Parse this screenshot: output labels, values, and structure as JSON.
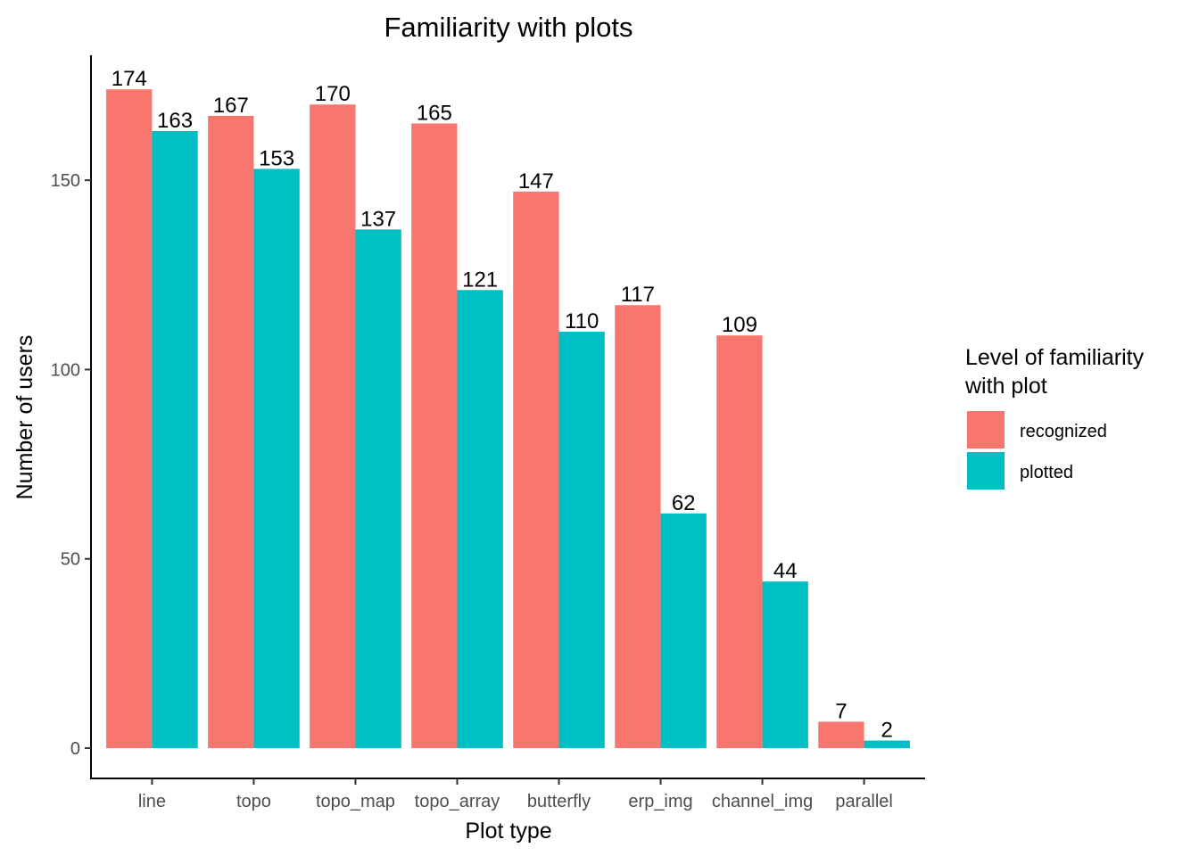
{
  "chart_data": {
    "type": "bar",
    "title": "Familiarity with plots",
    "xlabel": "Plot type",
    "ylabel": "Number of users",
    "categories": [
      "line",
      "topo",
      "topo_map",
      "topo_array",
      "butterfly",
      "erp_img",
      "channel_img",
      "parallel"
    ],
    "series": [
      {
        "name": "recognized",
        "color": "#F8766D",
        "values": [
          174,
          167,
          170,
          165,
          147,
          117,
          109,
          7
        ]
      },
      {
        "name": "plotted",
        "color": "#00BFC4",
        "values": [
          163,
          153,
          137,
          121,
          110,
          62,
          44,
          2
        ]
      }
    ],
    "yticks": [
      0,
      50,
      100,
      150
    ],
    "ylim": [
      -8,
      183
    ],
    "grid": false,
    "legend": {
      "title_lines": [
        "Level of familiarity",
        "with plot"
      ],
      "position": "right"
    }
  }
}
